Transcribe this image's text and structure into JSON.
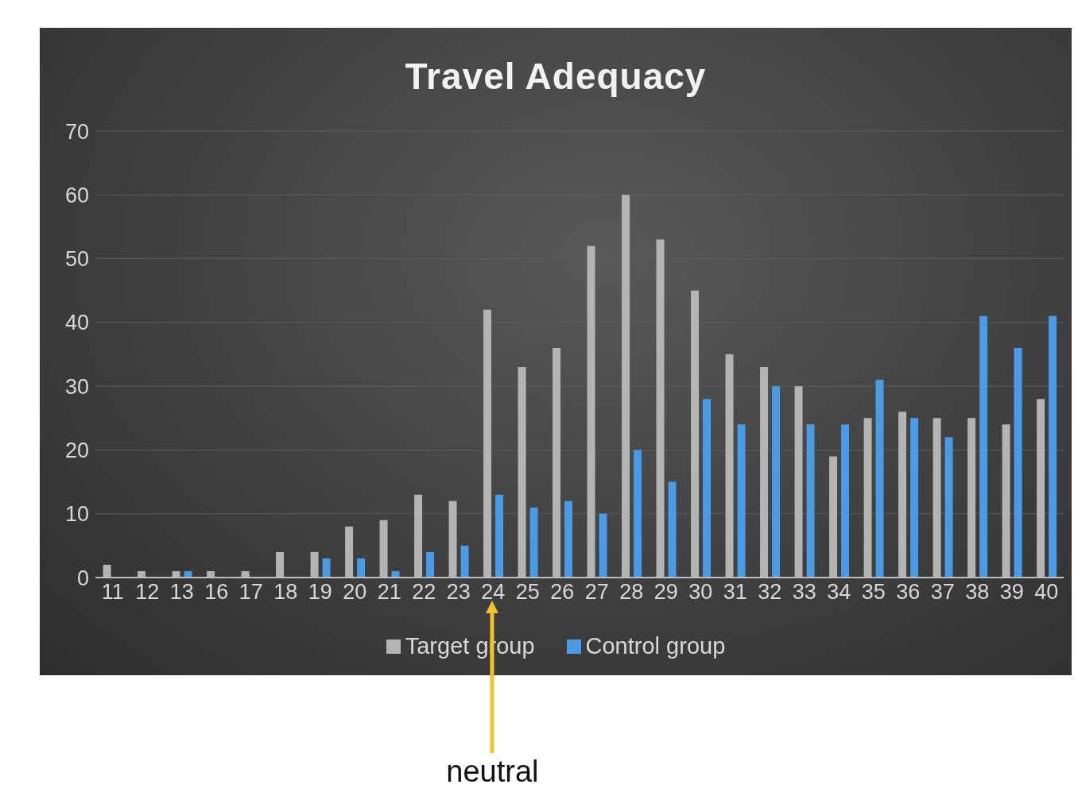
{
  "chart_data": {
    "type": "bar",
    "title": "Travel Adequacy",
    "categories": [
      "11",
      "12",
      "13",
      "16",
      "17",
      "18",
      "19",
      "20",
      "21",
      "22",
      "23",
      "24",
      "25",
      "26",
      "27",
      "28",
      "29",
      "30",
      "31",
      "32",
      "33",
      "34",
      "35",
      "36",
      "37",
      "38",
      "39",
      "40"
    ],
    "series": [
      {
        "name": "Target group",
        "color": "#b4b4b4",
        "values": [
          2,
          1,
          1,
          1,
          1,
          4,
          4,
          8,
          9,
          13,
          12,
          42,
          33,
          36,
          52,
          60,
          53,
          45,
          35,
          33,
          30,
          19,
          25,
          26,
          25,
          25,
          24,
          28
        ]
      },
      {
        "name": "Control group",
        "color": "#4a9be6",
        "values": [
          0,
          0,
          1,
          0,
          0,
          0,
          3,
          3,
          1,
          4,
          5,
          13,
          11,
          12,
          10,
          20,
          15,
          28,
          24,
          30,
          24,
          24,
          31,
          25,
          22,
          41,
          36,
          41
        ]
      }
    ],
    "ylim": [
      0,
      70
    ],
    "yticks": [
      0,
      10,
      20,
      30,
      40,
      50,
      60,
      70
    ],
    "grid": "y",
    "legend": "bottom",
    "annotations": [
      "neutral"
    ]
  }
}
